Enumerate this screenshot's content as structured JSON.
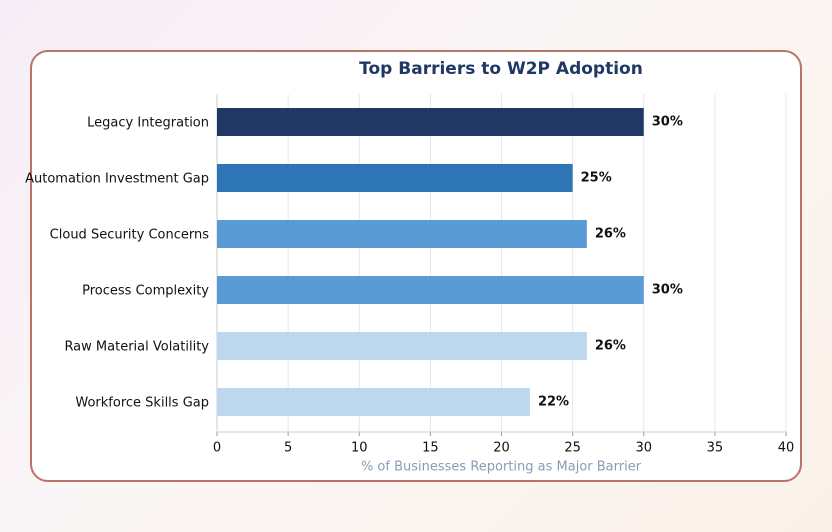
{
  "chart_data": {
    "type": "hbar",
    "title": "Top Barriers to W2P Adoption",
    "x_label": "% of Businesses Reporting as Major Barrier",
    "categories": [
      "Legacy Integration",
      "Automation Investment Gap",
      "Cloud Security Concerns",
      "Process Complexity",
      "Raw Material Volatility",
      "Workforce Skills Gap"
    ],
    "values": [
      30,
      25,
      26,
      30,
      26,
      22
    ],
    "value_labels": [
      "30%",
      "25%",
      "26%",
      "30%",
      "26%",
      "22%"
    ],
    "colors": [
      "#1f3864",
      "#2e75b6",
      "#5b9bd5",
      "#5b9bd5",
      "#bdd7ee",
      "#bdd7ee"
    ],
    "xlim": [
      0,
      40
    ],
    "xticks": [
      0,
      5,
      10,
      15,
      20,
      25,
      30,
      35,
      40
    ],
    "grid": true
  }
}
